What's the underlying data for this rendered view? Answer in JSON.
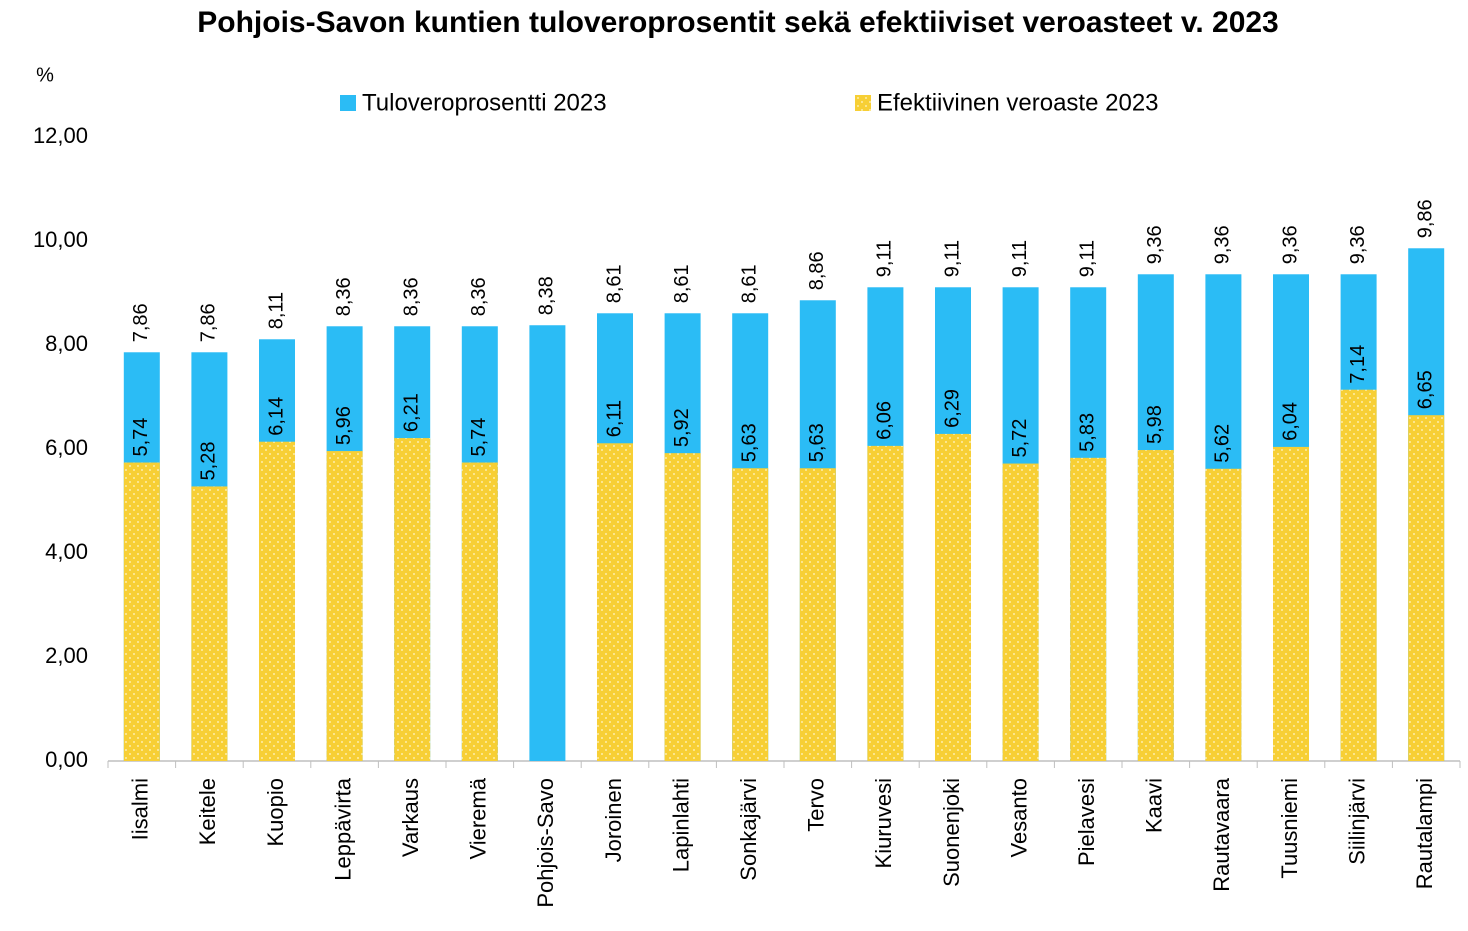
{
  "chart_data": {
    "type": "overlapped_bar",
    "title": "Pohjois-Savon kuntien tuloveroprosentit sekä efektiiviset veroasteet v. 2023",
    "y_axis_label": "%",
    "categories": [
      "Iisalmi",
      "Keitele",
      "Kuopio",
      "Leppävirta",
      "Varkaus",
      "Vieremä",
      "Pohjois-Savo",
      "Joroinen",
      "Lapinlahti",
      "Sonkajärvi",
      "Tervo",
      "Kiuruvesi",
      "Suonenjoki",
      "Vesanto",
      "Pielavesi",
      "Kaavi",
      "Rautavaara",
      "Tuusniemi",
      "Siilinjärvi",
      "Rautalampi"
    ],
    "series": [
      {
        "name": "Tuloveroprosentti 2023",
        "color": "#2bbcf5",
        "values": [
          7.86,
          7.86,
          8.11,
          8.36,
          8.36,
          8.36,
          8.38,
          8.61,
          8.61,
          8.61,
          8.86,
          9.11,
          9.11,
          9.11,
          9.11,
          9.36,
          9.36,
          9.36,
          9.36,
          9.86
        ],
        "value_labels": [
          "7,86",
          "7,86",
          "8,11",
          "8,36",
          "8,36",
          "8,36",
          "8,38",
          "8,61",
          "8,61",
          "8,61",
          "8,86",
          "9,11",
          "9,11",
          "9,11",
          "9,11",
          "9,36",
          "9,36",
          "9,36",
          "9,36",
          "9,86"
        ]
      },
      {
        "name": "Efektiivinen veroaste 2023",
        "color": "#f7cf35",
        "values": [
          5.74,
          5.28,
          6.14,
          5.96,
          6.21,
          5.74,
          null,
          6.11,
          5.92,
          5.63,
          5.63,
          6.06,
          6.29,
          5.72,
          5.83,
          5.98,
          5.62,
          6.04,
          7.14,
          6.65
        ],
        "value_labels": [
          "5,74",
          "5,28",
          "6,14",
          "5,96",
          "6,21",
          "5,74",
          null,
          "6,11",
          "5,92",
          "5,63",
          "5,63",
          "6,06",
          "6,29",
          "5,72",
          "5,83",
          "5,98",
          "5,62",
          "6,04",
          "7,14",
          "6,65"
        ]
      }
    ],
    "ylim": [
      0,
      12
    ],
    "yticks": [
      {
        "value": 0,
        "label": "0,00"
      },
      {
        "value": 2,
        "label": "2,00"
      },
      {
        "value": 4,
        "label": "4,00"
      },
      {
        "value": 6,
        "label": "6,00"
      },
      {
        "value": 8,
        "label": "8,00"
      },
      {
        "value": 10,
        "label": "10,00"
      },
      {
        "value": 12,
        "label": "12,00"
      }
    ],
    "grid": false,
    "legend": "top"
  }
}
